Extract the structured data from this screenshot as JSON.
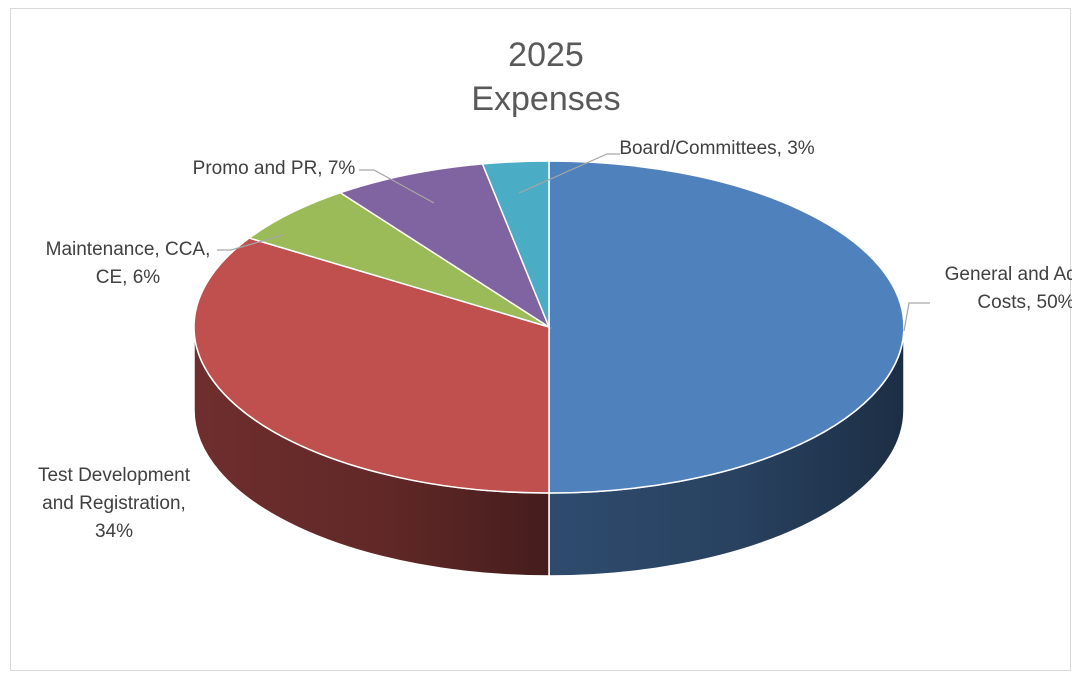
{
  "chart_data": {
    "type": "pie",
    "style": "3d",
    "title_lines": [
      "2025",
      "Expenses"
    ],
    "slices": [
      {
        "name": "General and Admin Costs",
        "value": 50,
        "label_lines": [
          "General and Admin",
          "Costs, 50%"
        ],
        "color": "#4f81bd"
      },
      {
        "name": "Test Development and Registration",
        "value": 34,
        "label_lines": [
          "Test Development",
          "and Registration,",
          "34%"
        ],
        "color": "#c0504d"
      },
      {
        "name": "Maintenance, CCA, CE",
        "value": 6,
        "label_lines": [
          "Maintenance, CCA,",
          "CE, 6%"
        ],
        "color": "#9bbb59"
      },
      {
        "name": "Promo and PR",
        "value": 7,
        "label_lines": [
          "Promo and PR, 7%"
        ],
        "color": "#8064a2"
      },
      {
        "name": "Board/Committees",
        "value": 3,
        "label_lines": [
          "Board/Committees, 3%"
        ],
        "color": "#4bacc6"
      }
    ],
    "legend": "none"
  }
}
